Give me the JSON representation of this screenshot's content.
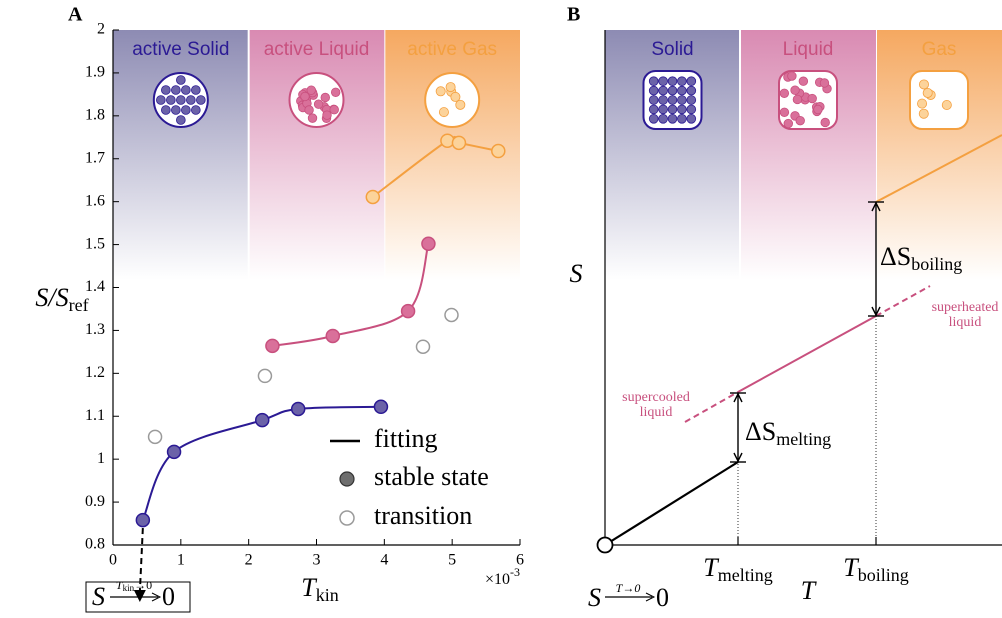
{
  "chart_data": [
    {
      "type": "scatter",
      "panel": "A",
      "xlim": [
        0,
        6
      ],
      "xticks": [
        0,
        1,
        2,
        3,
        4,
        5,
        6
      ],
      "x_scale_label": {
        "base": "×10",
        "exp": "-3"
      },
      "ylim": [
        0.8,
        2
      ],
      "yticks": [
        0.8,
        0.9,
        1,
        1.1,
        1.2,
        1.3,
        1.4,
        1.5,
        1.6,
        1.7,
        1.8,
        1.9,
        2
      ],
      "xlabel": {
        "main": "T",
        "sub": "kin"
      },
      "ylabel": {
        "main": "S/S",
        "sub": "ref"
      },
      "series": [
        {
          "name": "active Solid",
          "color": "#2b1a94",
          "fill": "#6b62a8",
          "band": [
            0,
            2
          ],
          "band_color": "#8d8bb3",
          "fit": true,
          "x": [
            0.44,
            0.9,
            2.2,
            2.73,
            3.95
          ],
          "values": [
            0.858,
            1.017,
            1.091,
            1.117,
            1.122
          ]
        },
        {
          "name": "active Liquid",
          "color": "#c8507e",
          "fill": "#d9709a",
          "band": [
            2,
            4
          ],
          "band_color": "#d98ab2",
          "fit": true,
          "x": [
            2.35,
            3.24,
            4.35,
            4.65
          ],
          "values": [
            1.264,
            1.287,
            1.345,
            1.502
          ]
        },
        {
          "name": "active Gas",
          "color": "#f4a040",
          "fill": "#fcd39a",
          "band": [
            4,
            6
          ],
          "band_color": "#f5a860",
          "fit": true,
          "x": [
            3.83,
            4.93,
            5.1,
            5.68
          ],
          "values": [
            1.611,
            1.742,
            1.737,
            1.718
          ]
        },
        {
          "name": "transition",
          "color": "#9a9a9a",
          "fill": "#ffffff",
          "fit": false,
          "x": [
            0.62,
            2.24,
            4.57,
            4.99
          ],
          "values": [
            1.052,
            1.194,
            1.262,
            1.336
          ]
        }
      ],
      "legend": [
        "fitting",
        "stable state"
      ],
      "limit": {
        "symbol": "S",
        "over": "T",
        "over_sub": "kin",
        "over_end": "→0",
        "result": "0"
      }
    },
    {
      "type": "schematic",
      "panel": "B",
      "bands": [
        "Solid",
        "Liquid",
        "Gas"
      ],
      "xlabel": "T",
      "ylabel": "S",
      "t_melting": {
        "main": "T",
        "sub": "melting"
      },
      "t_boiling": {
        "main": "T",
        "sub": "boiling"
      },
      "ds_melting": {
        "main": "ΔS",
        "sub": "melting"
      },
      "ds_boiling": {
        "main": "ΔS",
        "sub": "boiling"
      },
      "supercooled": [
        "supercooled",
        "liquid"
      ],
      "superheated": [
        "superheated",
        "liquid"
      ],
      "limit": {
        "symbol": "S",
        "over": "T→0",
        "result": "0"
      }
    }
  ]
}
